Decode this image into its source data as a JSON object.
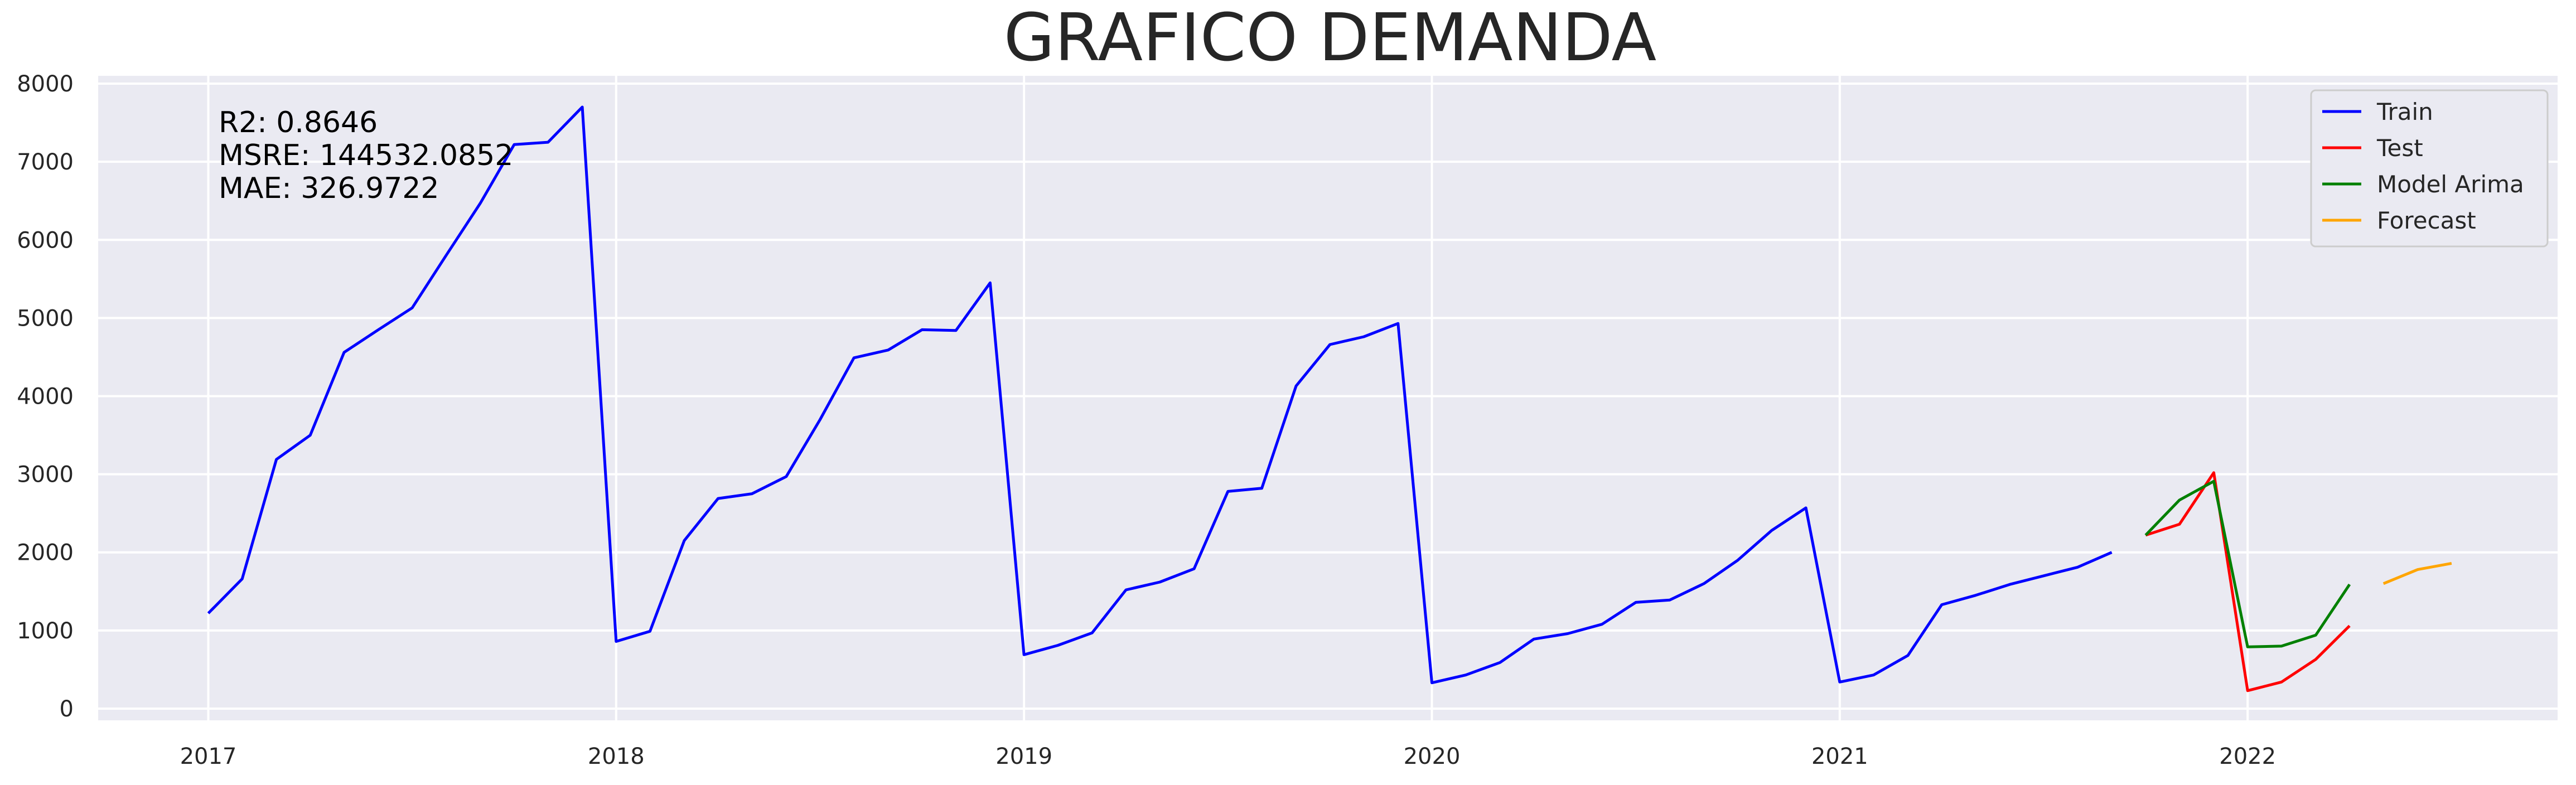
{
  "chart_data": {
    "type": "line",
    "title": "GRAFICO DEMANDA",
    "xlabel": "",
    "ylabel": "",
    "ylim": [
      -150,
      8100
    ],
    "yticks": [
      0,
      1000,
      2000,
      3000,
      4000,
      5000,
      6000,
      7000,
      8000
    ],
    "xlim": [
      2016.73,
      2022.76
    ],
    "xticks": [
      {
        "value": 2017,
        "label": "2017"
      },
      {
        "value": 2018,
        "label": "2018"
      },
      {
        "value": 2019,
        "label": "2019"
      },
      {
        "value": 2020,
        "label": "2020"
      },
      {
        "value": 2021,
        "label": "2021"
      },
      {
        "value": 2022,
        "label": "2022"
      }
    ],
    "grid": true,
    "legend_position": "top-right",
    "annotations": [
      "R2: 0.8646",
      "MSRE: 144532.0852",
      "MAE: 326.9722"
    ],
    "series": [
      {
        "name": "Train",
        "color": "#0000ff",
        "x": [
          2017.0,
          2017.083,
          2017.167,
          2017.25,
          2017.333,
          2017.417,
          2017.5,
          2017.583,
          2017.667,
          2017.75,
          2017.833,
          2017.917,
          2018.0,
          2018.083,
          2018.167,
          2018.25,
          2018.333,
          2018.417,
          2018.5,
          2018.583,
          2018.667,
          2018.75,
          2018.833,
          2018.917,
          2019.0,
          2019.083,
          2019.167,
          2019.25,
          2019.333,
          2019.417,
          2019.5,
          2019.583,
          2019.667,
          2019.75,
          2019.833,
          2019.917,
          2020.0,
          2020.083,
          2020.167,
          2020.25,
          2020.333,
          2020.417,
          2020.5,
          2020.583,
          2020.667,
          2020.75,
          2020.833,
          2020.917,
          2021.0,
          2021.083,
          2021.167,
          2021.25,
          2021.333,
          2021.417,
          2021.5,
          2021.583,
          2021.667
        ],
        "y": [
          1220,
          1660,
          3190,
          3500,
          4560,
          4850,
          5130,
          5800,
          6470,
          7220,
          7250,
          7700,
          860,
          990,
          2150,
          2690,
          2750,
          2970,
          3700,
          4490,
          4590,
          4850,
          4840,
          5450,
          690,
          810,
          970,
          1520,
          1620,
          1790,
          2780,
          2820,
          4130,
          4660,
          4760,
          4930,
          330,
          430,
          590,
          890,
          960,
          1080,
          1360,
          1390,
          1600,
          1900,
          2280,
          2570,
          340,
          430,
          680,
          1330,
          1450,
          1590,
          1700,
          1810,
          2000
        ]
      },
      {
        "name": "Test",
        "color": "#ff0000",
        "x": [
          2021.75,
          2021.833,
          2021.917,
          2022.0,
          2022.083,
          2022.167,
          2022.25
        ],
        "y": [
          2220,
          2360,
          3020,
          230,
          340,
          630,
          1060
        ]
      },
      {
        "name": "Model Arima",
        "color": "#008000",
        "x": [
          2021.75,
          2021.833,
          2021.917,
          2022.0,
          2022.083,
          2022.167,
          2022.25
        ],
        "y": [
          2220,
          2670,
          2910,
          790,
          800,
          940,
          1590
        ]
      },
      {
        "name": "Forecast",
        "color": "#ffa500",
        "x": [
          2022.333,
          2022.417,
          2022.5
        ],
        "y": [
          1600,
          1780,
          1860
        ]
      }
    ]
  }
}
